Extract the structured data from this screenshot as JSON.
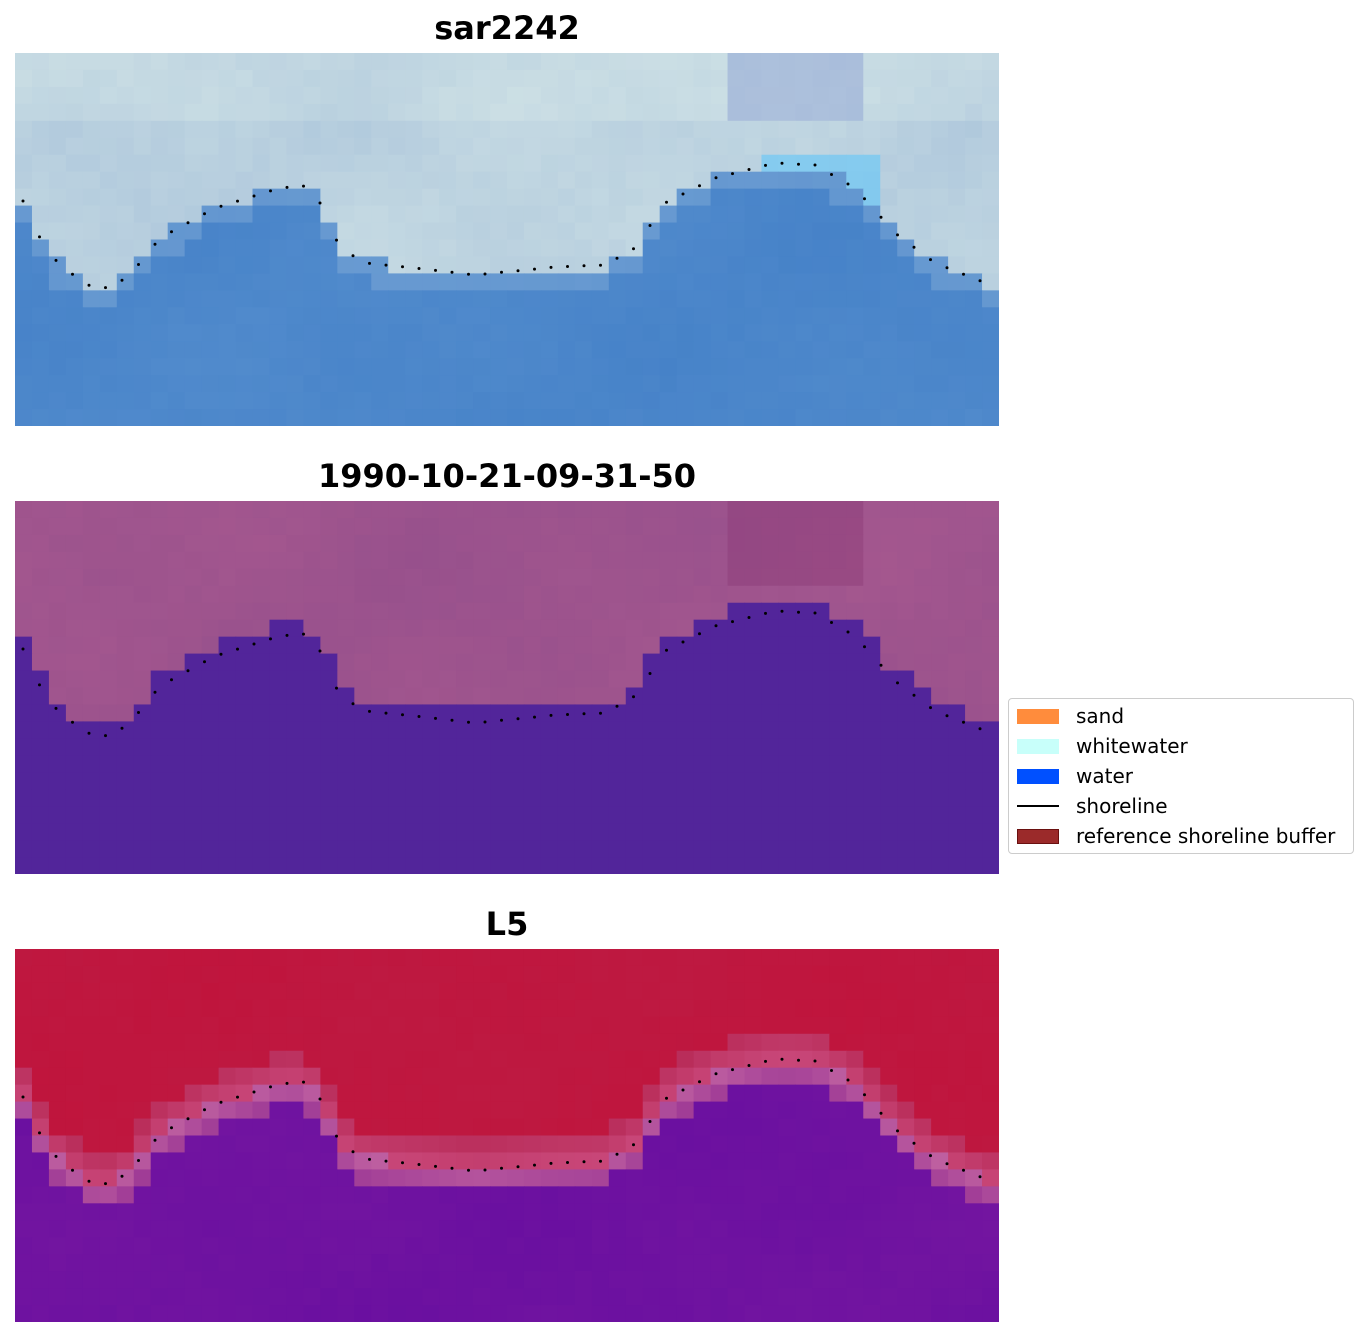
{
  "panels": [
    {
      "title": "sar2242",
      "style": "rgb"
    },
    {
      "title": "1990-10-21-09-31-50",
      "style": "class"
    },
    {
      "title": "L5",
      "style": "index"
    }
  ],
  "legend": {
    "items": [
      {
        "label": "sand",
        "color": "#ff8c3c",
        "kind": "patch"
      },
      {
        "label": "whitewater",
        "color": "#c8fffa",
        "kind": "patch"
      },
      {
        "label": "water",
        "color": "#0050ff",
        "kind": "patch"
      },
      {
        "label": "shoreline",
        "color": "#000000",
        "kind": "line"
      },
      {
        "label": "reference shoreline buffer",
        "color": "#9b2a2a",
        "kind": "patch"
      }
    ]
  },
  "colors": {
    "water_class": "#52259a",
    "sand_overlay": "#9b5189",
    "index_high": "#c0143c",
    "index_low": "#6a0fa0",
    "shoreline": "#000000"
  }
}
